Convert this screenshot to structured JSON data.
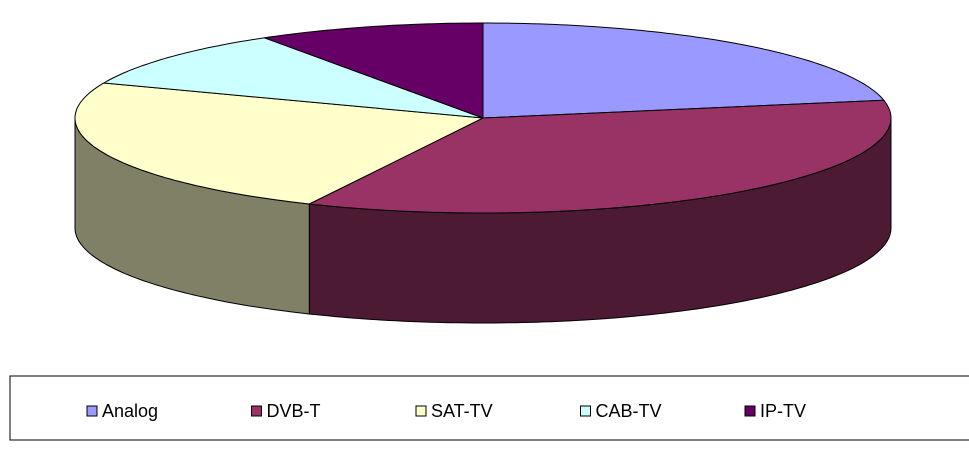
{
  "chart_data": {
    "type": "pie",
    "three_d": true,
    "categories": [
      "Analog",
      "DVB-T",
      "SAT-TV",
      "CAB-TV",
      "IP-TV"
    ],
    "values": [
      22,
      35,
      24,
      10,
      9
    ],
    "colors": [
      "#9999ff",
      "#993366",
      "#ffffcc",
      "#ccffff",
      "#660066"
    ],
    "legend": "bottom"
  }
}
